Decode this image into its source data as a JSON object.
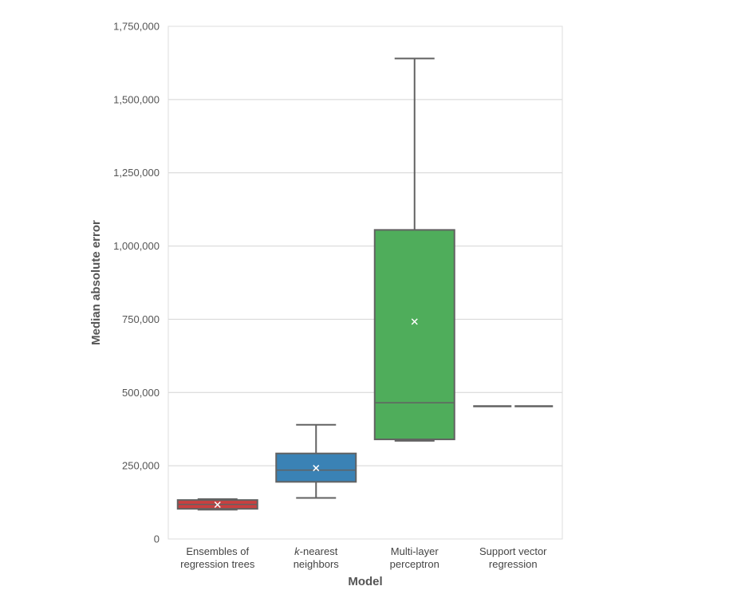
{
  "chart_data": {
    "type": "box",
    "xlabel": "Model",
    "ylabel": "Median absolute error",
    "ylim": [
      0,
      1750000
    ],
    "yticks": [
      0,
      250000,
      500000,
      750000,
      1000000,
      1250000,
      1500000,
      1750000
    ],
    "ytick_labels": [
      "0",
      "250,000",
      "500,000",
      "750,000",
      "1,000,000",
      "1,250,000",
      "1,500,000",
      "1,750,000"
    ],
    "grid": "horizontal",
    "categories": [
      {
        "label_lines": [
          "Ensembles of",
          "regression trees"
        ],
        "italic_prefix": ""
      },
      {
        "label_lines": [
          "-nearest",
          "neighbors"
        ],
        "italic_prefix": "k"
      },
      {
        "label_lines": [
          "Multi-layer",
          "perceptron"
        ],
        "italic_prefix": ""
      },
      {
        "label_lines": [
          "Support vector",
          "regression"
        ],
        "italic_prefix": ""
      }
    ],
    "boxes": [
      {
        "whisker_low": 100000,
        "q1": 103000,
        "median": 118000,
        "q3": 133000,
        "whisker_high": 136000,
        "mean": 117000,
        "color": "#c94040"
      },
      {
        "whisker_low": 140000,
        "q1": 195000,
        "median": 235000,
        "q3": 292000,
        "whisker_high": 390000,
        "mean": 242000,
        "color": "#3a82b5"
      },
      {
        "whisker_low": 335000,
        "q1": 340000,
        "median": 465000,
        "q3": 1055000,
        "whisker_high": 1640000,
        "mean": 742000,
        "color": "#4fad5b"
      },
      {
        "whisker_low": 453000,
        "q1": 453000,
        "median": 453000,
        "q3": 453000,
        "whisker_high": 453000,
        "mean": null,
        "color": "#4a6fb0"
      }
    ],
    "mean_marker": "x"
  }
}
